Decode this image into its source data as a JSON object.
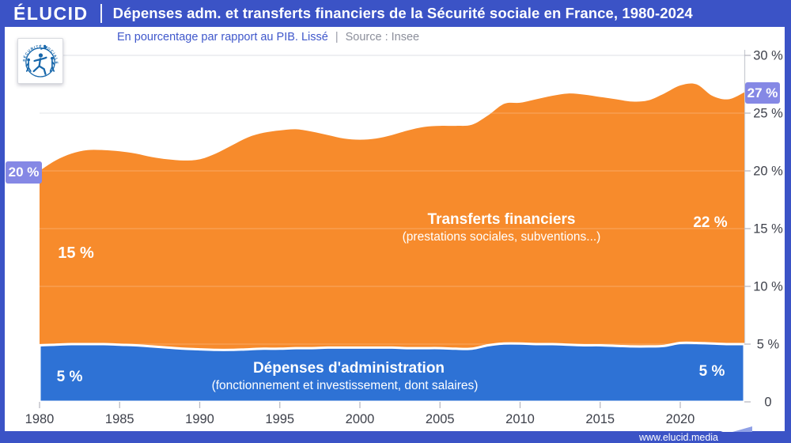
{
  "header": {
    "brand": "ÉLUCID",
    "title": "Dépenses adm. et transferts financiers de la Sécurité sociale en France, 1980-2024"
  },
  "subtitle": {
    "description": "En pourcentage par rapport au PIB. Lissé",
    "separator": "|",
    "source": "Source : Insee"
  },
  "logo": {
    "text": "SÉCURITÉ SOCIALE"
  },
  "badges": {
    "start": "20 %",
    "end": "27 %"
  },
  "area_labels": {
    "transfers_title": "Transferts financiers",
    "transfers_sub": "(prestations sociales, subventions...)",
    "transfers_left": "15 %",
    "transfers_right": "22 %",
    "admin_title": "Dépenses d'administration",
    "admin_sub": "(fonctionnement et investissement, dont salaires)",
    "admin_left": "5 %",
    "admin_right": "5 %"
  },
  "footer": {
    "url": "www.elucid.media"
  },
  "colors": {
    "header_blue": "#3b53c6",
    "area_blue": "#2e72d5",
    "area_orange": "#f78b2c",
    "badge_purple": "#8588e5",
    "axis_text": "#3e414b",
    "grid_gray": "#e4e5ea",
    "subtitle_blue": "#3f57cb",
    "subtitle_gray": "#8c8f9b",
    "logo_blue": "#1767ab"
  },
  "chart_data": {
    "type": "area",
    "stacked": true,
    "title": "Dépenses adm. et transferts financiers de la Sécurité sociale en France, 1980-2024",
    "ylabel": "En pourcentage par rapport au PIB (lissé)",
    "x": [
      1980,
      1981,
      1982,
      1983,
      1984,
      1985,
      1986,
      1987,
      1988,
      1989,
      1990,
      1991,
      1992,
      1993,
      1994,
      1995,
      1996,
      1997,
      1998,
      1999,
      2000,
      2001,
      2002,
      2003,
      2004,
      2005,
      2006,
      2007,
      2008,
      2009,
      2010,
      2011,
      2012,
      2013,
      2014,
      2015,
      2016,
      2017,
      2018,
      2019,
      2020,
      2021,
      2022,
      2023,
      2024
    ],
    "series": [
      {
        "name": "Dépenses d'administration",
        "color": "#2e72d5",
        "values": [
          4.9,
          4.95,
          5.0,
          5.0,
          5.0,
          4.95,
          4.9,
          4.8,
          4.7,
          4.6,
          4.55,
          4.5,
          4.5,
          4.55,
          4.6,
          4.6,
          4.65,
          4.65,
          4.7,
          4.7,
          4.7,
          4.7,
          4.7,
          4.65,
          4.65,
          4.65,
          4.6,
          4.6,
          4.9,
          5.05,
          5.05,
          5.0,
          5.0,
          4.95,
          4.9,
          4.9,
          4.85,
          4.8,
          4.8,
          4.85,
          5.1,
          5.1,
          5.05,
          5.0,
          5.0
        ]
      },
      {
        "name": "Transferts financiers",
        "color": "#f78b2c",
        "values": [
          15.1,
          15.95,
          16.5,
          16.8,
          16.8,
          16.75,
          16.6,
          16.4,
          16.3,
          16.3,
          16.45,
          17.0,
          17.7,
          18.35,
          18.7,
          18.9,
          18.95,
          18.75,
          18.4,
          18.1,
          18.0,
          18.1,
          18.4,
          18.85,
          19.15,
          19.25,
          19.3,
          19.4,
          19.9,
          20.75,
          20.85,
          21.2,
          21.5,
          21.75,
          21.7,
          21.5,
          21.35,
          21.2,
          21.3,
          21.85,
          22.3,
          22.4,
          21.45,
          21.2,
          21.8
        ]
      }
    ],
    "xlim": [
      1980,
      2024
    ],
    "ylim": [
      0,
      30
    ],
    "x_ticks": [
      1980,
      1985,
      1990,
      1995,
      2000,
      2005,
      2010,
      2015,
      2020
    ],
    "y_ticks": [
      {
        "v": 0,
        "label": "0"
      },
      {
        "v": 5,
        "label": "5 %"
      },
      {
        "v": 10,
        "label": "10 %"
      },
      {
        "v": 15,
        "label": "15 %"
      },
      {
        "v": 20,
        "label": "20 %"
      },
      {
        "v": 25,
        "label": "25 %"
      },
      {
        "v": 30,
        "label": "30 %"
      }
    ],
    "grid": true,
    "legend_position": "inside-areas",
    "annotations": {
      "start_total": "20 %",
      "end_total": "27 %",
      "transfers_mid": "15 %",
      "transfers_end": "22 %",
      "admin_mid": "5 %",
      "admin_end": "5 %"
    }
  }
}
